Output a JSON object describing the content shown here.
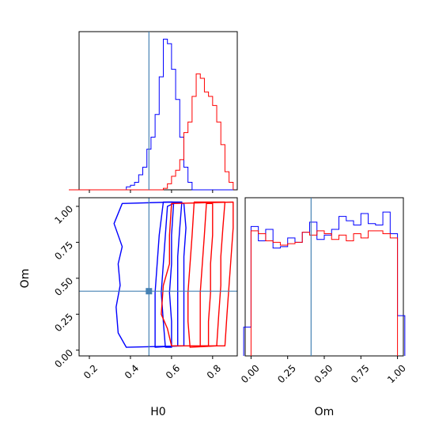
{
  "chart_data": [
    {
      "panel": "H0 marginal",
      "type": "histogram",
      "x_range": [
        0.15,
        0.92
      ],
      "series": [
        {
          "color": "#0000ff",
          "bin_edges": [
            0.1,
            0.12,
            0.14,
            0.16,
            0.18,
            0.2,
            0.22,
            0.24,
            0.26,
            0.28,
            0.3,
            0.32,
            0.34,
            0.36,
            0.38,
            0.4,
            0.42,
            0.44,
            0.46,
            0.48,
            0.5,
            0.52,
            0.54,
            0.56,
            0.58,
            0.6,
            0.62,
            0.64,
            0.66,
            0.68,
            0.7,
            0.72,
            0.74,
            0.76,
            0.78,
            0.8,
            0.82,
            0.84,
            0.86,
            0.88,
            0.9
          ],
          "counts": [
            0,
            0,
            0,
            0,
            0,
            0,
            0,
            0,
            0,
            0,
            0,
            0,
            0,
            0,
            0.02,
            0.03,
            0.05,
            0.1,
            0.15,
            0.27,
            0.35,
            0.5,
            0.75,
            1.0,
            0.97,
            0.8,
            0.6,
            0.35,
            0.15,
            0.05,
            0,
            0,
            0,
            0,
            0,
            0,
            0,
            0,
            0,
            0
          ]
        },
        {
          "color": "#ff0000",
          "bin_edges": [
            0.1,
            0.12,
            0.14,
            0.16,
            0.18,
            0.2,
            0.22,
            0.24,
            0.26,
            0.28,
            0.3,
            0.32,
            0.34,
            0.36,
            0.38,
            0.4,
            0.42,
            0.44,
            0.46,
            0.48,
            0.5,
            0.52,
            0.54,
            0.56,
            0.58,
            0.6,
            0.62,
            0.64,
            0.66,
            0.68,
            0.7,
            0.72,
            0.74,
            0.76,
            0.78,
            0.8,
            0.82,
            0.84,
            0.86,
            0.88,
            0.9
          ],
          "counts": [
            0,
            0,
            0,
            0,
            0,
            0,
            0,
            0,
            0,
            0,
            0,
            0,
            0,
            0,
            0,
            0,
            0,
            0,
            0,
            0,
            0,
            0,
            0,
            0.01,
            0.04,
            0.09,
            0.13,
            0.2,
            0.38,
            0.45,
            0.62,
            0.77,
            0.74,
            0.65,
            0.62,
            0.56,
            0.45,
            0.3,
            0.12,
            0.05
          ]
        }
      ],
      "truth": 0.49
    },
    {
      "panel": "H0 vs Om",
      "type": "contour",
      "xlabel": "H0",
      "ylabel": "Om",
      "xlim": [
        0.15,
        0.92
      ],
      "ylim": [
        -0.04,
        1.06
      ],
      "xticks": [
        "0.2",
        "0.4",
        "0.6",
        "0.8"
      ],
      "yticks": [
        "0.00",
        "0.25",
        "0.50",
        "0.75",
        "1.00"
      ],
      "series": [
        {
          "color": "#0000ff",
          "contours": [
            [
              [
                0.57,
                0.02
              ],
              [
                0.56,
                0.2
              ],
              [
                0.55,
                0.4
              ],
              [
                0.56,
                0.6
              ],
              [
                0.57,
                0.8
              ],
              [
                0.58,
                1.0
              ],
              [
                0.61,
                1.02
              ],
              [
                0.6,
                0.8
              ],
              [
                0.6,
                0.6
              ],
              [
                0.59,
                0.4
              ],
              [
                0.6,
                0.2
              ],
              [
                0.6,
                0.02
              ]
            ],
            [
              [
                0.52,
                0.02
              ],
              [
                0.52,
                0.2
              ],
              [
                0.52,
                0.4
              ],
              [
                0.53,
                0.6
              ],
              [
                0.54,
                0.8
              ],
              [
                0.56,
                1.03
              ],
              [
                0.65,
                1.03
              ],
              [
                0.64,
                0.85
              ],
              [
                0.63,
                0.65
              ],
              [
                0.63,
                0.45
              ],
              [
                0.63,
                0.25
              ],
              [
                0.63,
                0.03
              ]
            ],
            [
              [
                0.38,
                0.02
              ],
              [
                0.34,
                0.12
              ],
              [
                0.33,
                0.3
              ],
              [
                0.35,
                0.45
              ],
              [
                0.34,
                0.6
              ],
              [
                0.36,
                0.72
              ],
              [
                0.32,
                0.88
              ],
              [
                0.36,
                1.02
              ],
              [
                0.6,
                1.03
              ],
              [
                0.66,
                1.02
              ],
              [
                0.67,
                0.85
              ],
              [
                0.66,
                0.65
              ],
              [
                0.66,
                0.45
              ],
              [
                0.66,
                0.25
              ],
              [
                0.66,
                0.03
              ]
            ]
          ]
        },
        {
          "color": "#ff0000",
          "contours": [
            [
              [
                0.74,
                0.03
              ],
              [
                0.74,
                0.2
              ],
              [
                0.74,
                0.4
              ],
              [
                0.75,
                0.6
              ],
              [
                0.76,
                0.8
              ],
              [
                0.77,
                1.02
              ],
              [
                0.8,
                1.02
              ],
              [
                0.8,
                0.8
              ],
              [
                0.79,
                0.6
              ],
              [
                0.79,
                0.4
              ],
              [
                0.78,
                0.2
              ],
              [
                0.78,
                0.03
              ]
            ],
            [
              [
                0.69,
                0.02
              ],
              [
                0.68,
                0.2
              ],
              [
                0.68,
                0.4
              ],
              [
                0.69,
                0.6
              ],
              [
                0.7,
                0.8
              ],
              [
                0.71,
                1.03
              ],
              [
                0.86,
                1.03
              ],
              [
                0.85,
                0.85
              ],
              [
                0.84,
                0.65
              ],
              [
                0.84,
                0.45
              ],
              [
                0.83,
                0.25
              ],
              [
                0.82,
                0.03
              ]
            ],
            [
              [
                0.6,
                0.03
              ],
              [
                0.58,
                0.15
              ],
              [
                0.55,
                0.25
              ],
              [
                0.56,
                0.45
              ],
              [
                0.59,
                0.6
              ],
              [
                0.59,
                0.8
              ],
              [
                0.6,
                1.02
              ],
              [
                0.9,
                1.03
              ],
              [
                0.9,
                0.85
              ],
              [
                0.89,
                0.65
              ],
              [
                0.88,
                0.45
              ],
              [
                0.87,
                0.25
              ],
              [
                0.86,
                0.03
              ]
            ]
          ]
        }
      ],
      "truth": {
        "x": 0.49,
        "y": 0.41
      }
    },
    {
      "panel": "Om marginal",
      "type": "histogram",
      "xlabel": "Om",
      "xlim": [
        -0.04,
        1.04
      ],
      "xticks": [
        "0.00",
        "0.25",
        "0.50",
        "0.75",
        "1.00"
      ],
      "series": [
        {
          "color": "#0000ff",
          "bin_edges": [
            -0.05,
            0.0,
            0.05,
            0.1,
            0.15,
            0.2,
            0.25,
            0.3,
            0.35,
            0.4,
            0.45,
            0.5,
            0.55,
            0.6,
            0.65,
            0.7,
            0.75,
            0.8,
            0.85,
            0.9,
            0.95,
            1.0,
            1.05
          ],
          "counts": [
            0.2,
            0.9,
            0.8,
            0.88,
            0.75,
            0.76,
            0.82,
            0.79,
            0.86,
            0.93,
            0.81,
            0.84,
            0.88,
            0.97,
            0.94,
            0.91,
            0.99,
            0.92,
            0.91,
            1.0,
            0.85,
            0.28
          ]
        },
        {
          "color": "#ff0000",
          "bin_edges": [
            0.0,
            0.05,
            0.1,
            0.15,
            0.2,
            0.25,
            0.3,
            0.35,
            0.4,
            0.45,
            0.5,
            0.55,
            0.6,
            0.65,
            0.7,
            0.75,
            0.8,
            0.85,
            0.9,
            0.95,
            1.0
          ],
          "counts": [
            0.87,
            0.85,
            0.8,
            0.79,
            0.77,
            0.78,
            0.79,
            0.86,
            0.84,
            0.87,
            0.85,
            0.81,
            0.84,
            0.8,
            0.85,
            0.82,
            0.87,
            0.87,
            0.85,
            0.82
          ]
        }
      ],
      "truth": 0.41
    }
  ],
  "truth_color": "#4682b4"
}
